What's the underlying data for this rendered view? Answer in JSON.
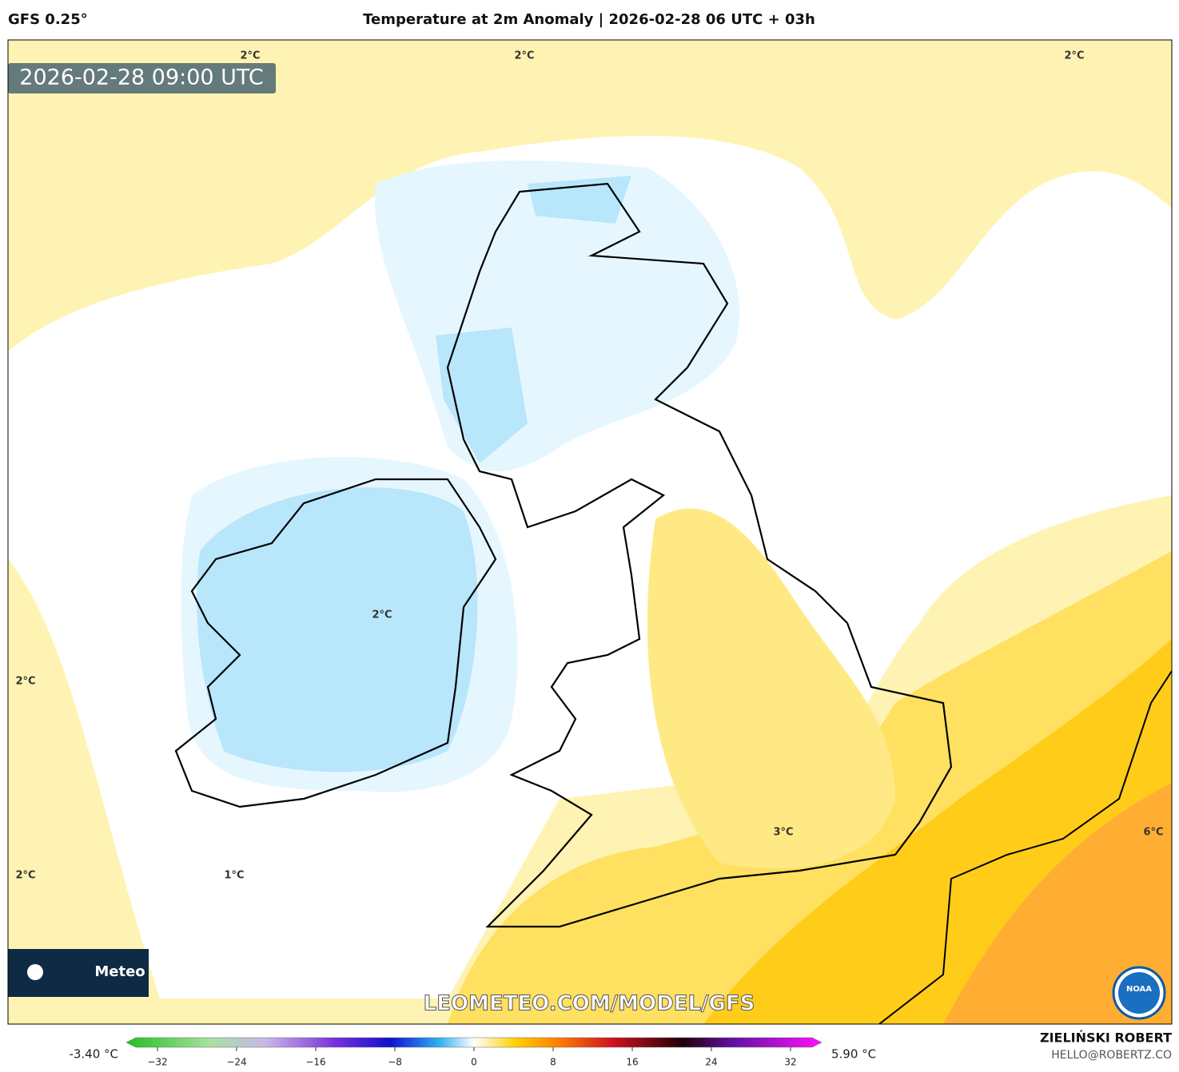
{
  "header": {
    "model": "GFS 0.25°",
    "title": "Temperature at 2m Anomaly | 2026-02-28 06 UTC + 03h"
  },
  "map": {
    "timestamp": "2026-02-28 09:00 UTC",
    "contour_labels": [
      "2°C",
      "2°C",
      "2°C",
      "2°C",
      "2°C",
      "2°C",
      "1°C",
      "3°C",
      "6°C"
    ],
    "logo": "Meteo",
    "watermark": "LEOMETEO.COM/MODEL/GFS",
    "noaa": "NOAA"
  },
  "colorbar": {
    "min_label": "-3.40 °C",
    "max_label": "5.90 °C",
    "lim": [
      -32,
      32
    ],
    "ticks": [
      {
        "value": -32,
        "label": "−32"
      },
      {
        "value": -24,
        "label": "−24"
      },
      {
        "value": -16,
        "label": "−16"
      },
      {
        "value": -8,
        "label": "−8"
      },
      0,
      8,
      16,
      24,
      32
    ]
  },
  "credits": {
    "author": "ZIELIŃSKI ROBERT",
    "email": "HELLO@ROBERTZ.CO"
  }
}
